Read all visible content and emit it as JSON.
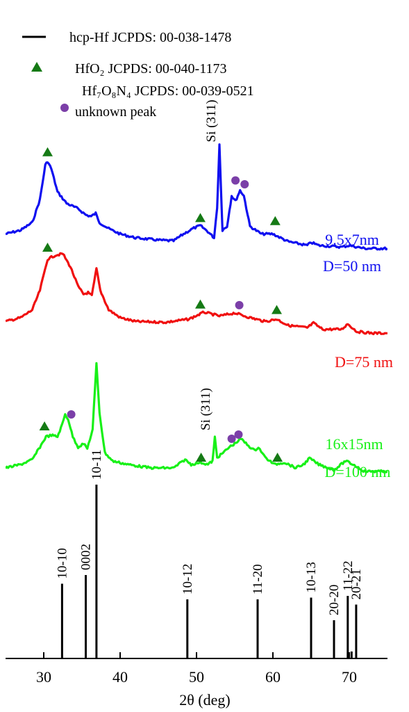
{
  "chart_data": {
    "type": "line",
    "xlabel": "2θ (deg)",
    "xlim": [
      25,
      75
    ],
    "x_ticks": [
      "30",
      "40",
      "50",
      "60",
      "70"
    ],
    "legend": {
      "placement": "top-left",
      "entries": [
        {
          "marker": "line",
          "text": "hcp-Hf  JCPDS: 00-038-1478"
        },
        {
          "marker": "triangle",
          "text": "HfO₂ JCPDS: 00-040-1173"
        },
        {
          "marker": "none",
          "text": "Hf₇O₈N₄ JCPDS: 00-039-0521"
        },
        {
          "marker": "circle",
          "text": "unknown peak"
        }
      ]
    },
    "colors": {
      "blue": "#1010f0",
      "red": "#f01010",
      "green": "#18f018",
      "triangle": "#157a15",
      "circle": "#7b3fa8",
      "axis": "#000000"
    },
    "series": [
      {
        "color": "blue",
        "labels": [
          "9.5x7nm",
          "D=50 nm"
        ],
        "points": [
          [
            25,
            0.05
          ],
          [
            27,
            0.1
          ],
          [
            28.5,
            0.2
          ],
          [
            29.5,
            0.5
          ],
          [
            30.2,
            0.95
          ],
          [
            30.5,
            1.0
          ],
          [
            31,
            0.9
          ],
          [
            31.8,
            0.6
          ],
          [
            33,
            0.45
          ],
          [
            34.5,
            0.38
          ],
          [
            35.5,
            0.3
          ],
          [
            36.2,
            0.28
          ],
          [
            36.8,
            0.32
          ],
          [
            37.3,
            0.2
          ],
          [
            38.5,
            0.12
          ],
          [
            40,
            0.05
          ],
          [
            42,
            0.0
          ],
          [
            45,
            -0.03
          ],
          [
            47,
            -0.04
          ],
          [
            48.3,
            0.05
          ],
          [
            49.5,
            0.12
          ],
          [
            50.5,
            0.16
          ],
          [
            51.5,
            0.08
          ],
          [
            52.3,
            0.0
          ],
          [
            52.7,
            0.4
          ],
          [
            53,
            1.22
          ],
          [
            53.4,
            0.1
          ],
          [
            54,
            0.15
          ],
          [
            54.6,
            0.55
          ],
          [
            55.1,
            0.48
          ],
          [
            55.7,
            0.62
          ],
          [
            56.2,
            0.55
          ],
          [
            57,
            0.15
          ],
          [
            58.5,
            0.05
          ],
          [
            60,
            0.05
          ],
          [
            62,
            -0.05
          ],
          [
            64.5,
            -0.1
          ],
          [
            65,
            -0.06
          ],
          [
            66,
            -0.1
          ],
          [
            69,
            -0.12
          ],
          [
            70,
            -0.1
          ],
          [
            72,
            -0.14
          ],
          [
            75,
            -0.14
          ]
        ],
        "markers": [
          {
            "type": "triangle",
            "x": 30.5,
            "y": 1.12
          },
          {
            "type": "triangle",
            "x": 50.5,
            "y": 0.26
          },
          {
            "type": "triangle",
            "x": 60.3,
            "y": 0.22
          },
          {
            "type": "circle",
            "x": 55.1,
            "y": 0.75
          },
          {
            "type": "circle",
            "x": 56.3,
            "y": 0.7
          }
        ],
        "annotations": [
          {
            "text": "Si (311)",
            "x": 51.9,
            "y": 1.25
          }
        ]
      },
      {
        "color": "red",
        "labels": [
          "D=75 nm"
        ],
        "points": [
          [
            25,
            0.05
          ],
          [
            27,
            0.1
          ],
          [
            28.5,
            0.2
          ],
          [
            29.5,
            0.45
          ],
          [
            30.5,
            0.85
          ],
          [
            31.5,
            0.9
          ],
          [
            32.5,
            0.92
          ],
          [
            33.5,
            0.75
          ],
          [
            34.5,
            0.5
          ],
          [
            35.2,
            0.4
          ],
          [
            35.8,
            0.42
          ],
          [
            36.3,
            0.38
          ],
          [
            36.9,
            0.73
          ],
          [
            37.4,
            0.45
          ],
          [
            38.5,
            0.2
          ],
          [
            40,
            0.1
          ],
          [
            42,
            0.05
          ],
          [
            46,
            0.04
          ],
          [
            49,
            0.08
          ],
          [
            51,
            0.17
          ],
          [
            53,
            0.12
          ],
          [
            55,
            0.16
          ],
          [
            57,
            0.1
          ],
          [
            59,
            0.05
          ],
          [
            60.5,
            0.08
          ],
          [
            62,
            0.0
          ],
          [
            64.5,
            -0.03
          ],
          [
            65.3,
            0.03
          ],
          [
            66.5,
            -0.05
          ],
          [
            69,
            -0.05
          ],
          [
            69.8,
            0.02
          ],
          [
            71,
            -0.08
          ],
          [
            73,
            -0.1
          ],
          [
            75,
            -0.1
          ]
        ],
        "markers": [
          {
            "type": "triangle",
            "x": 30.5,
            "y": 1.0
          },
          {
            "type": "triangle",
            "x": 50.5,
            "y": 0.27
          },
          {
            "type": "triangle",
            "x": 60.5,
            "y": 0.2
          },
          {
            "type": "circle",
            "x": 55.6,
            "y": 0.26
          }
        ]
      },
      {
        "color": "green",
        "labels": [
          "16x15nm",
          "D=100 nm"
        ],
        "points": [
          [
            25,
            0.0
          ],
          [
            27,
            0.05
          ],
          [
            28.5,
            0.12
          ],
          [
            29.5,
            0.3
          ],
          [
            30.3,
            0.45
          ],
          [
            31,
            0.47
          ],
          [
            31.8,
            0.45
          ],
          [
            32.4,
            0.62
          ],
          [
            32.8,
            0.77
          ],
          [
            33.2,
            0.7
          ],
          [
            33.8,
            0.45
          ],
          [
            34.5,
            0.3
          ],
          [
            35.2,
            0.35
          ],
          [
            35.7,
            0.28
          ],
          [
            36.4,
            0.55
          ],
          [
            36.9,
            1.5
          ],
          [
            37.3,
            0.8
          ],
          [
            38,
            0.22
          ],
          [
            39,
            0.1
          ],
          [
            41,
            0.05
          ],
          [
            44,
            0.0
          ],
          [
            47,
            0.0
          ],
          [
            48.5,
            0.12
          ],
          [
            49.3,
            0.05
          ],
          [
            50.5,
            0.08
          ],
          [
            51.5,
            0.05
          ],
          [
            52.1,
            0.1
          ],
          [
            52.4,
            0.44
          ],
          [
            52.7,
            0.15
          ],
          [
            53.3,
            0.2
          ],
          [
            54.3,
            0.3
          ],
          [
            55,
            0.35
          ],
          [
            55.8,
            0.42
          ],
          [
            56.8,
            0.32
          ],
          [
            57.6,
            0.25
          ],
          [
            58.1,
            0.3
          ],
          [
            59,
            0.15
          ],
          [
            60.2,
            0.05
          ],
          [
            61.5,
            0.08
          ],
          [
            63,
            0.0
          ],
          [
            64,
            0.05
          ],
          [
            64.8,
            0.14
          ],
          [
            66,
            0.05
          ],
          [
            68,
            -0.03
          ],
          [
            69.5,
            0.1
          ],
          [
            70.5,
            0.05
          ],
          [
            72,
            -0.05
          ],
          [
            75,
            -0.05
          ]
        ],
        "markers": [
          {
            "type": "triangle",
            "x": 30.1,
            "y": 0.6
          },
          {
            "type": "triangle",
            "x": 50.6,
            "y": 0.15
          },
          {
            "type": "triangle",
            "x": 60.6,
            "y": 0.15
          },
          {
            "type": "circle",
            "x": 33.6,
            "y": 0.77
          },
          {
            "type": "circle",
            "x": 54.6,
            "y": 0.42
          },
          {
            "type": "circle",
            "x": 55.5,
            "y": 0.48
          }
        ],
        "annotations": [
          {
            "text": "Si (311)",
            "x": 51.2,
            "y": 0.54
          }
        ]
      }
    ],
    "reference_lines": [
      {
        "x": 32.4,
        "height": 0.43,
        "label": "10-10"
      },
      {
        "x": 35.5,
        "height": 0.48,
        "label": "0002"
      },
      {
        "x": 36.9,
        "height": 1.0,
        "label": "10-11"
      },
      {
        "x": 48.8,
        "height": 0.34,
        "label": "10-12"
      },
      {
        "x": 58.0,
        "height": 0.34,
        "label": "11-20"
      },
      {
        "x": 65.0,
        "height": 0.35,
        "label": "10-13"
      },
      {
        "x": 68.0,
        "height": 0.22,
        "label": "20-20"
      },
      {
        "x": 69.8,
        "height": 0.36,
        "label": "11-22"
      },
      {
        "x": 70.3,
        "height": 0.04,
        "label": ""
      },
      {
        "x": 70.9,
        "height": 0.31,
        "label": "20-21"
      }
    ]
  }
}
